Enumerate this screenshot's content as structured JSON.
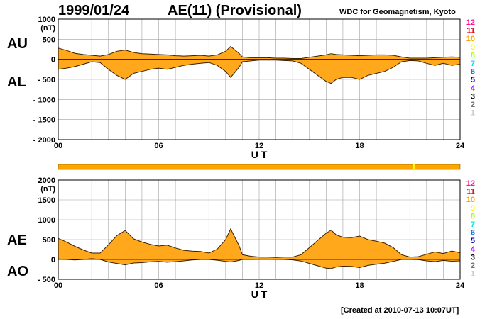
{
  "header": {
    "date": "1999/01/24",
    "title": "AE(11) (Provisional)",
    "credit": "WDC for Geomagnetism, Kyoto"
  },
  "footer": {
    "created": "[Created at 2010-07-13 10:07UT]"
  },
  "legend_numbers": [
    {
      "label": "12",
      "color": "#ff1493"
    },
    {
      "label": "11",
      "color": "#e8001a"
    },
    {
      "label": "10",
      "color": "#ffa500"
    },
    {
      "label": "9",
      "color": "#ffff00"
    },
    {
      "label": "8",
      "color": "#a8ff00"
    },
    {
      "label": "7",
      "color": "#00e8e8"
    },
    {
      "label": "6",
      "color": "#0a6aff"
    },
    {
      "label": "5",
      "color": "#0000b0"
    },
    {
      "label": "4",
      "color": "#c000ff"
    },
    {
      "label": "3",
      "color": "#000000"
    },
    {
      "label": "2",
      "color": "#707070"
    },
    {
      "label": "1",
      "color": "#c8c8c8"
    }
  ],
  "colors": {
    "fill": "#ffa81c",
    "line": "#3a1f00",
    "grid": "#a0a0a0",
    "station_bar": "#ffa500",
    "station_mark": "#ffff00"
  },
  "chart_data": [
    {
      "type": "area",
      "name": "AU/AL panel",
      "side_labels": [
        "AU",
        "AL"
      ],
      "unit": "(nT)",
      "xlabel": "U T",
      "xlim": [
        0,
        24
      ],
      "xticks": [
        "00",
        "06",
        "12",
        "18",
        "24"
      ],
      "ylim": [
        -2000,
        1000
      ],
      "yticks": [
        "1000",
        "500",
        "0",
        "- 500",
        "- 1000",
        "- 1500",
        "- 2000"
      ],
      "ytick_values": [
        1000,
        500,
        0,
        -500,
        -1000,
        -1500,
        -2000
      ],
      "grid": true,
      "x": [
        0,
        0.5,
        1,
        1.5,
        2,
        2.5,
        3,
        3.5,
        4,
        4.5,
        5,
        5.5,
        6,
        6.5,
        7,
        7.5,
        8,
        8.5,
        9,
        9.5,
        10,
        10.3,
        10.5,
        10.8,
        11,
        11.5,
        12,
        12.5,
        13,
        13.5,
        14,
        14.5,
        15,
        15.5,
        16,
        16.3,
        16.6,
        17,
        17.5,
        18,
        18.5,
        19,
        19.5,
        20,
        20.5,
        21,
        21.5,
        22,
        22.5,
        23,
        23.5,
        24
      ],
      "series": [
        {
          "name": "AU",
          "values": [
            280,
            220,
            150,
            120,
            100,
            80,
            120,
            200,
            230,
            170,
            140,
            130,
            120,
            110,
            90,
            80,
            90,
            100,
            80,
            110,
            200,
            320,
            250,
            150,
            60,
            40,
            40,
            40,
            30,
            30,
            20,
            20,
            50,
            80,
            110,
            140,
            120,
            110,
            100,
            90,
            100,
            110,
            110,
            100,
            60,
            30,
            30,
            30,
            40,
            50,
            60,
            50
          ]
        },
        {
          "name": "AL",
          "values": [
            -250,
            -220,
            -180,
            -120,
            -60,
            -80,
            -250,
            -400,
            -500,
            -350,
            -300,
            -250,
            -220,
            -250,
            -200,
            -150,
            -120,
            -100,
            -80,
            -150,
            -300,
            -450,
            -350,
            -200,
            -60,
            -40,
            -20,
            -20,
            -20,
            -30,
            -40,
            -100,
            -250,
            -400,
            -550,
            -600,
            -500,
            -450,
            -450,
            -500,
            -400,
            -350,
            -300,
            -200,
            -60,
            -30,
            -40,
            -100,
            -150,
            -100,
            -150,
            -120
          ]
        }
      ]
    },
    {
      "type": "area",
      "name": "AE/AO panel",
      "side_labels": [
        "AE",
        "AO"
      ],
      "unit": "(nT)",
      "xlabel": "U T",
      "xlim": [
        0,
        24
      ],
      "xticks": [
        "00",
        "06",
        "12",
        "18",
        "24"
      ],
      "ylim": [
        -500,
        2000
      ],
      "yticks": [
        "2000",
        "1500",
        "1000",
        "500",
        "0",
        "- 500"
      ],
      "ytick_values": [
        2000,
        1500,
        1000,
        500,
        0,
        -500
      ],
      "grid": true,
      "x": [
        0,
        0.5,
        1,
        1.5,
        2,
        2.5,
        3,
        3.5,
        4,
        4.5,
        5,
        5.5,
        6,
        6.5,
        7,
        7.5,
        8,
        8.5,
        9,
        9.5,
        10,
        10.3,
        10.5,
        10.8,
        11,
        11.5,
        12,
        12.5,
        13,
        13.5,
        14,
        14.5,
        15,
        15.5,
        16,
        16.3,
        16.6,
        17,
        17.5,
        18,
        18.5,
        19,
        19.5,
        20,
        20.5,
        21,
        21.5,
        22,
        22.5,
        23,
        23.5,
        24
      ],
      "series": [
        {
          "name": "AE",
          "values": [
            530,
            440,
            330,
            240,
            160,
            160,
            370,
            600,
            730,
            520,
            440,
            380,
            340,
            360,
            290,
            230,
            210,
            200,
            160,
            260,
            500,
            770,
            600,
            350,
            120,
            80,
            60,
            60,
            50,
            60,
            60,
            120,
            300,
            480,
            660,
            740,
            620,
            560,
            550,
            590,
            500,
            460,
            410,
            300,
            120,
            60,
            70,
            130,
            190,
            150,
            210,
            170
          ]
        },
        {
          "name": "AO",
          "values": [
            15,
            0,
            -15,
            0,
            20,
            0,
            -65,
            -100,
            -135,
            -90,
            -80,
            -60,
            -50,
            -70,
            -55,
            -35,
            -15,
            0,
            0,
            -20,
            -50,
            -65,
            -50,
            -25,
            0,
            0,
            10,
            10,
            5,
            0,
            -10,
            -40,
            -100,
            -160,
            -220,
            -230,
            -190,
            -170,
            -175,
            -205,
            -150,
            -120,
            -95,
            -50,
            0,
            0,
            -5,
            -35,
            -55,
            -25,
            -45,
            -35
          ]
        }
      ]
    }
  ]
}
